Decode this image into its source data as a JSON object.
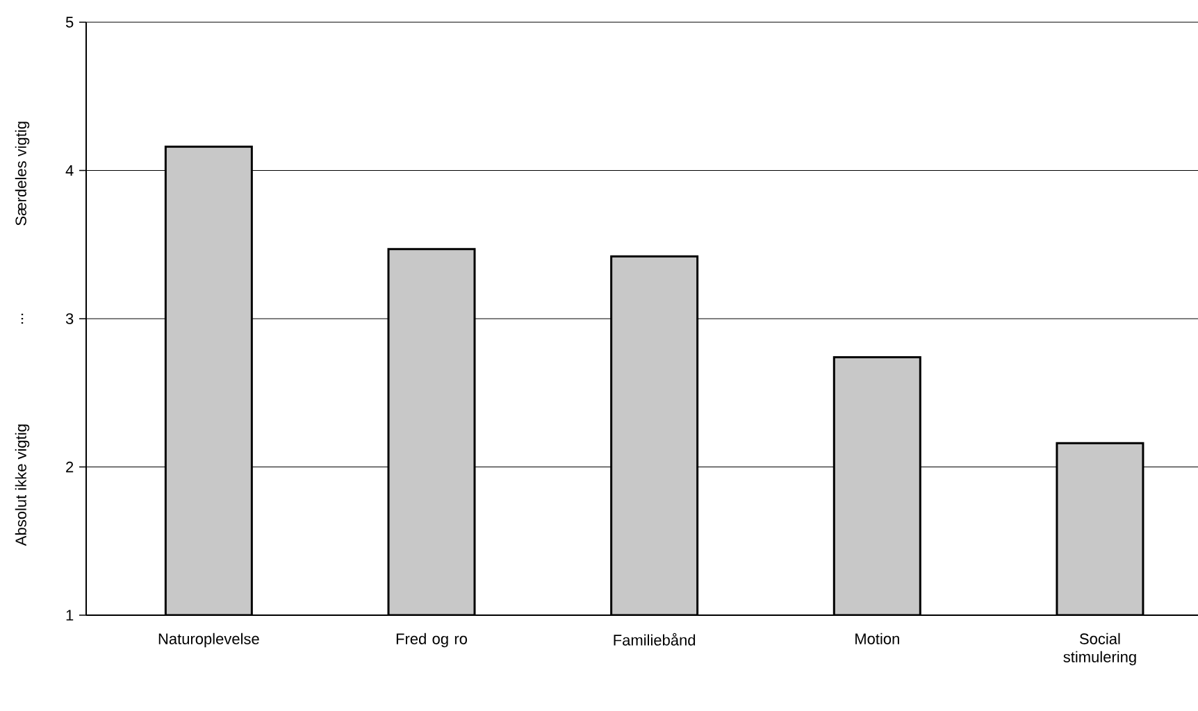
{
  "chart_data": {
    "type": "bar",
    "categories": [
      "Naturoplevelse",
      "Fred og ro",
      "Familiebånd",
      "Motion",
      "Social stimulering"
    ],
    "values": [
      4.16,
      3.47,
      3.42,
      2.74,
      2.16
    ],
    "color": "#c8c8c8",
    "ylim": [
      1,
      5
    ],
    "yticks": [
      1,
      2,
      3,
      4,
      5
    ],
    "grid": "y",
    "ylabel": "Absolut ikke vigtig",
    "annotations": [
      "...",
      "Særdeles vigtig"
    ]
  }
}
